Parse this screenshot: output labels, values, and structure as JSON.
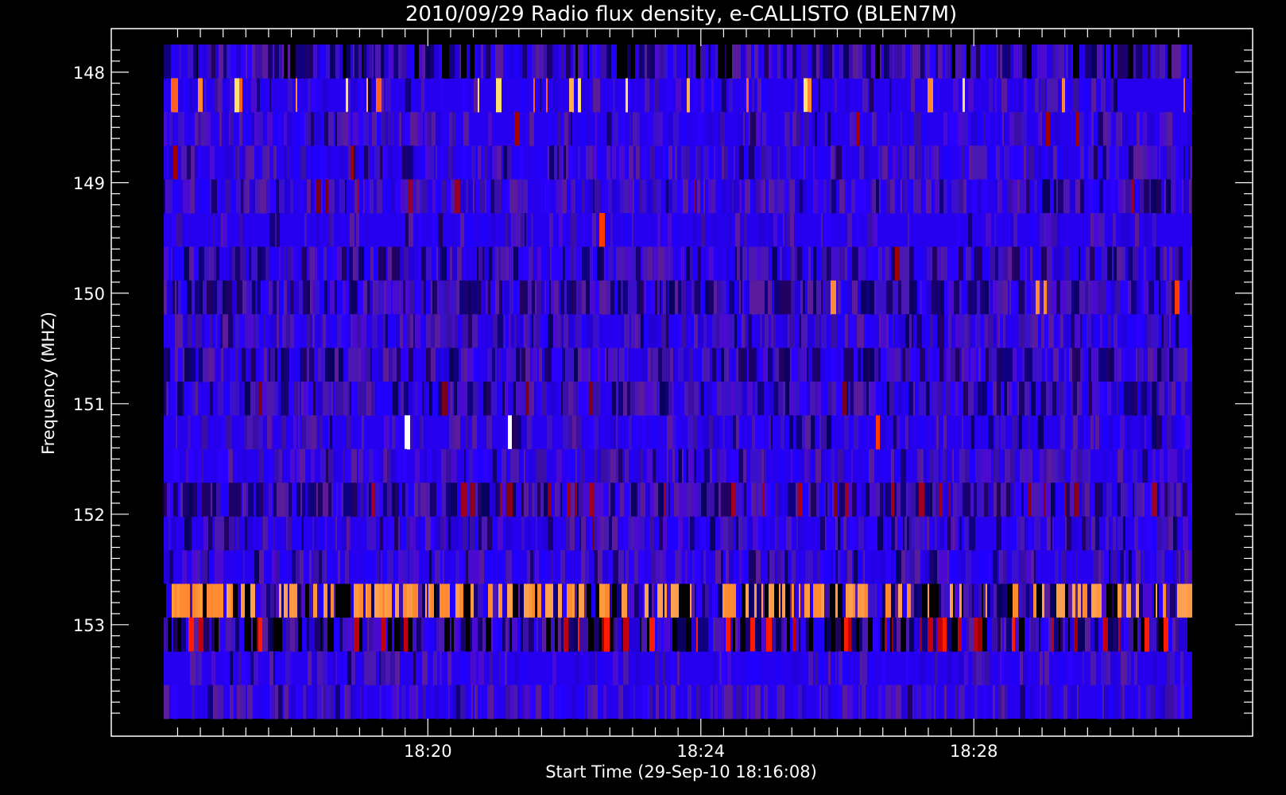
{
  "chart_data": {
    "type": "heatmap",
    "title": "2010/09/29  Radio flux density, e-CALLISTO (BLEN7M)",
    "xlabel": "Start Time (29-Sep-10 18:16:08)",
    "ylabel": "Frequency (MHZ)",
    "x_ticks": [
      "18:20",
      "18:24",
      "18:28"
    ],
    "y_ticks": [
      "148",
      "149",
      "150",
      "151",
      "152",
      "153"
    ],
    "x_range_minutes": [
      16.13,
      31.2
    ],
    "y_range_mhz": [
      147.75,
      153.85
    ],
    "y_axis_inverted": true,
    "colormap": [
      "#000000",
      "#2a00ff",
      "#7a1f6a",
      "#a00000",
      "#ff3b00",
      "#ff8a30",
      "#ffe070",
      "#ffffff"
    ],
    "colors": {
      "background": "#000000",
      "axes": "#ffffff"
    }
  }
}
